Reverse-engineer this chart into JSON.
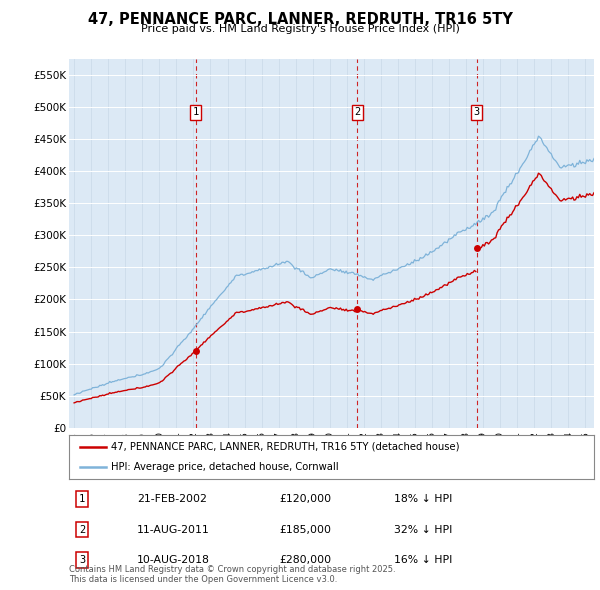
{
  "title": "47, PENNANCE PARC, LANNER, REDRUTH, TR16 5TY",
  "subtitle": "Price paid vs. HM Land Registry's House Price Index (HPI)",
  "ylim": [
    0,
    575000
  ],
  "yticks": [
    0,
    50000,
    100000,
    150000,
    200000,
    250000,
    300000,
    350000,
    400000,
    450000,
    500000,
    550000
  ],
  "ytick_labels": [
    "£0",
    "£50K",
    "£100K",
    "£150K",
    "£200K",
    "£250K",
    "£300K",
    "£350K",
    "£400K",
    "£450K",
    "£500K",
    "£550K"
  ],
  "bg_color": "#dce9f5",
  "hpi_color": "#7fb3d9",
  "price_color": "#cc0000",
  "sale_dates": [
    2002.13,
    2011.61,
    2018.61
  ],
  "sale_prices": [
    120000,
    185000,
    280000
  ],
  "start_year": 1995.0,
  "end_year": 2025.5,
  "legend_label_price": "47, PENNANCE PARC, LANNER, REDRUTH, TR16 5TY (detached house)",
  "legend_label_hpi": "HPI: Average price, detached house, Cornwall",
  "table_entries": [
    {
      "num": 1,
      "date": "21-FEB-2002",
      "price": "£120,000",
      "pct": "18% ↓ HPI"
    },
    {
      "num": 2,
      "date": "11-AUG-2011",
      "price": "£185,000",
      "pct": "32% ↓ HPI"
    },
    {
      "num": 3,
      "date": "10-AUG-2018",
      "price": "£280,000",
      "pct": "16% ↓ HPI"
    }
  ],
  "footer": "Contains HM Land Registry data © Crown copyright and database right 2025.\nThis data is licensed under the Open Government Licence v3.0."
}
